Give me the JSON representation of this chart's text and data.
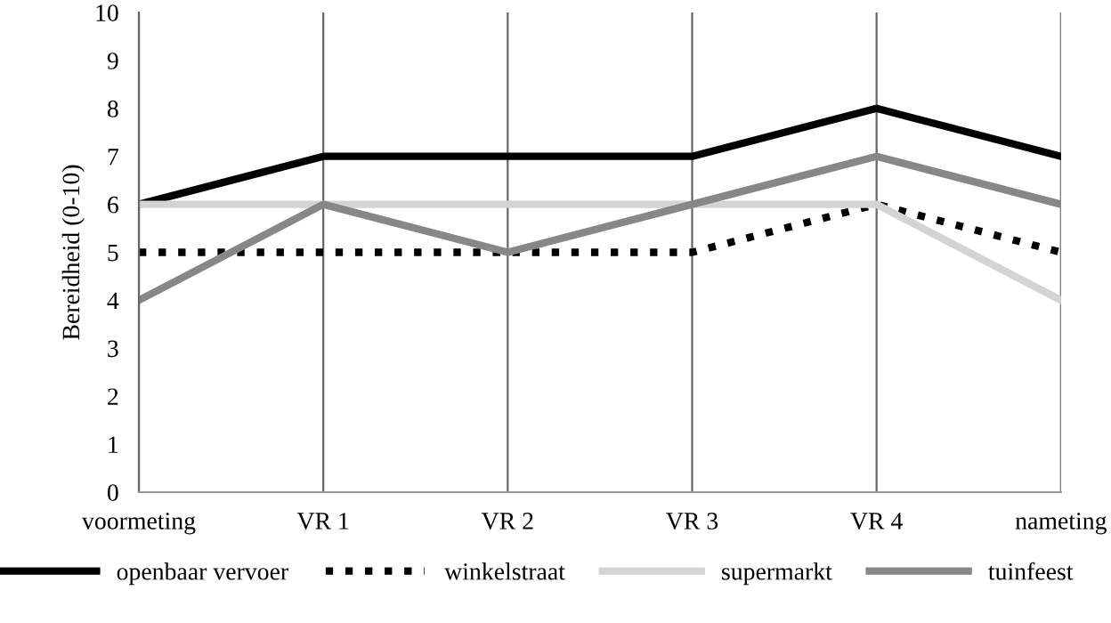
{
  "chart_data": {
    "type": "line",
    "ylabel": "Bereidheid (0-10)",
    "categories": [
      "voormeting",
      "VR 1",
      "VR 2",
      "VR 3",
      "VR 4",
      "nameting"
    ],
    "series": [
      {
        "name": "openbaar vervoer",
        "color": "#000000",
        "line_style": "solid",
        "values": [
          6,
          7,
          7,
          7,
          8,
          7
        ]
      },
      {
        "name": "winkelstraat",
        "color": "#000000",
        "line_style": "dotted",
        "values": [
          5,
          5,
          5,
          5,
          6,
          5
        ]
      },
      {
        "name": "supermarkt",
        "color": "#d4d4d4",
        "line_style": "solid",
        "values": [
          6,
          6,
          6,
          6,
          6,
          4
        ]
      },
      {
        "name": "tuinfeest",
        "color": "#878787",
        "line_style": "solid",
        "values": [
          4,
          6,
          5,
          6,
          7,
          6
        ]
      }
    ],
    "ylim": [
      0,
      10
    ],
    "yticks": [
      0,
      1,
      2,
      3,
      4,
      5,
      6,
      7,
      8,
      9,
      10
    ],
    "grid": "x",
    "legend": "bottom",
    "marker": "none"
  }
}
